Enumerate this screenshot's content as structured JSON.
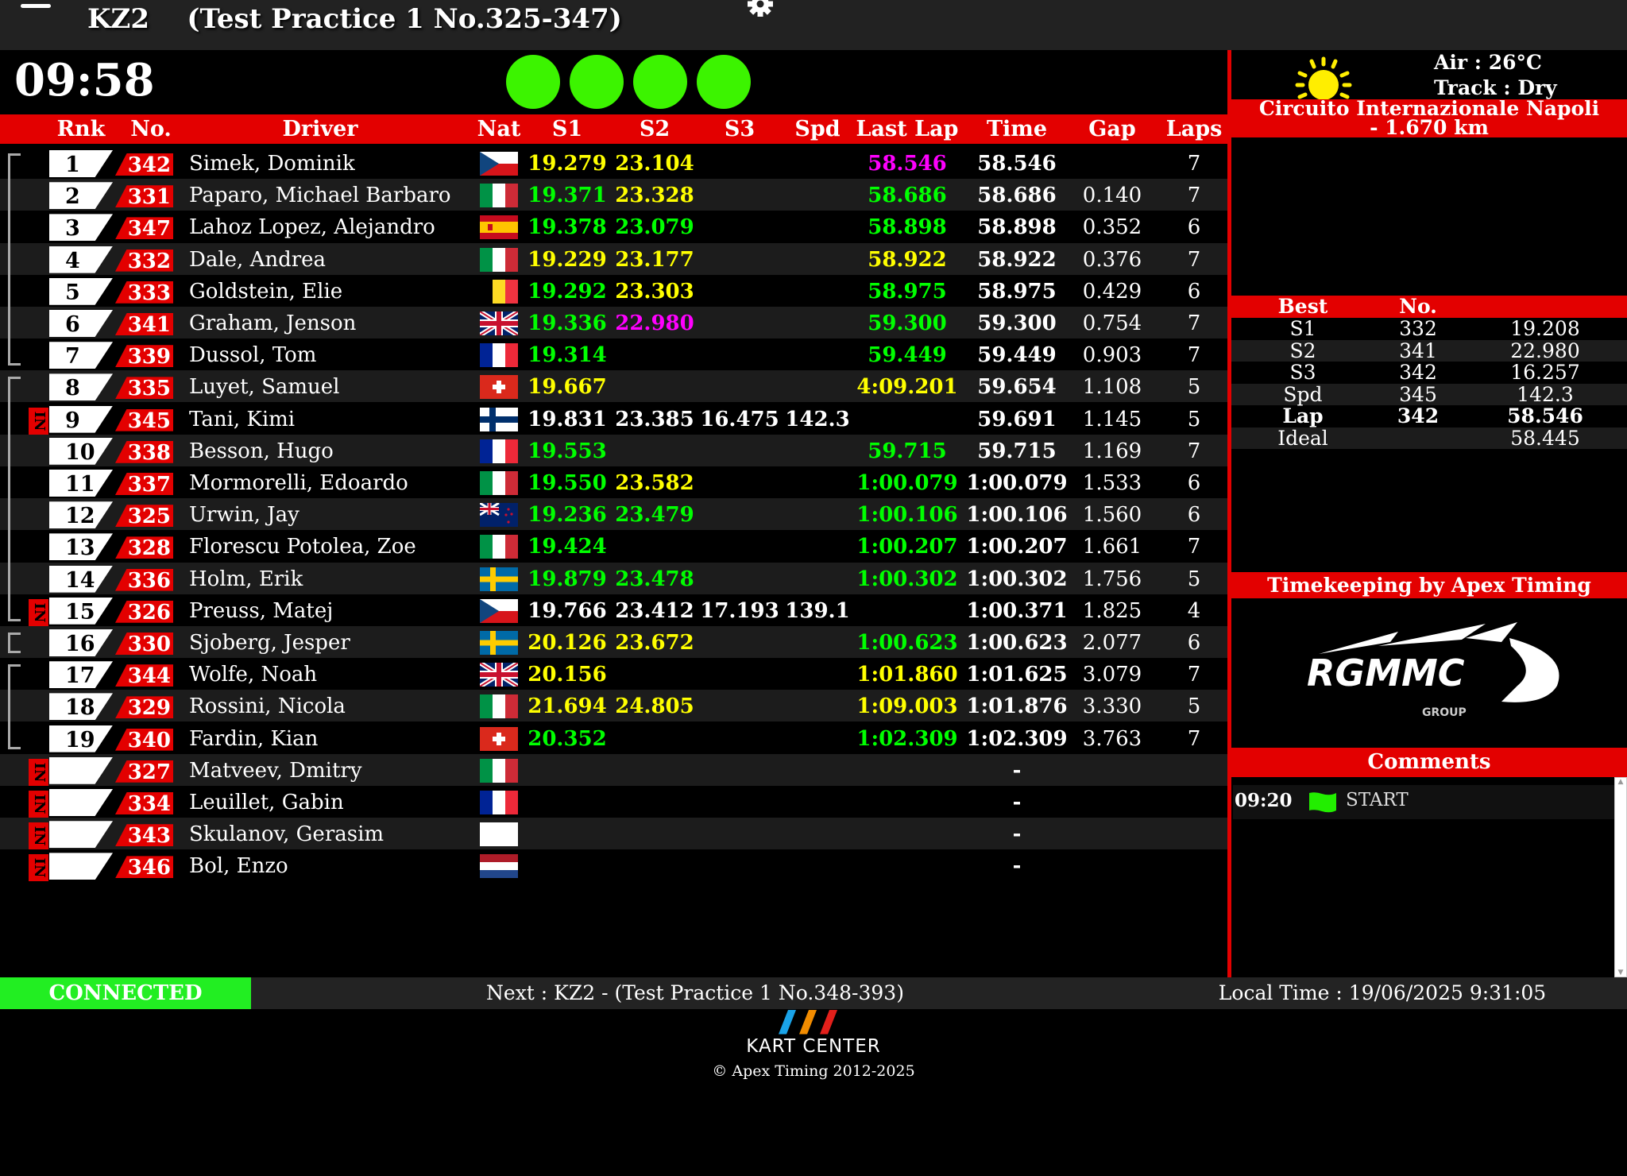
{
  "header": {
    "title": "KZ2    (Test Practice 1 No.325-347)",
    "menu_icon": "hamburger-icon",
    "settings_icon": "gear-icon"
  },
  "session": {
    "time_remaining": "09:58",
    "lights": [
      "green",
      "green",
      "green",
      "green"
    ],
    "light_color": "#3cf400"
  },
  "columns": {
    "rank": "Rnk",
    "no": "No.",
    "driver": "Driver",
    "nat": "Nat",
    "s1": "S1",
    "s2": "S2",
    "s3": "S3",
    "spd": "Spd",
    "last_lap": "Last Lap",
    "time": "Time",
    "gap": "Gap",
    "laps": "Laps"
  },
  "colors": {
    "personal_best": "#00ff00",
    "overall_best": "#ff00ff",
    "slower": "#ffff00",
    "accent": "#e30000"
  },
  "rows": [
    {
      "rank": "1",
      "no": "342",
      "driver": "Simek, Dominik",
      "nat": "CZ",
      "in": false,
      "group": 1,
      "s1": [
        "19.279",
        "y"
      ],
      "s2": [
        "23.104",
        "y"
      ],
      "s3": [
        "",
        ""
      ],
      "spd": [
        "",
        ""
      ],
      "last_lap": [
        "58.546",
        "m"
      ],
      "time": "58.546",
      "gap": "",
      "laps": "7"
    },
    {
      "rank": "2",
      "no": "331",
      "driver": "Paparo, Michael Barbaro",
      "nat": "IT",
      "in": false,
      "group": 1,
      "s1": [
        "19.371",
        "g"
      ],
      "s2": [
        "23.328",
        "y"
      ],
      "s3": [
        "",
        ""
      ],
      "spd": [
        "",
        ""
      ],
      "last_lap": [
        "58.686",
        "g"
      ],
      "time": "58.686",
      "gap": "0.140",
      "laps": "7"
    },
    {
      "rank": "3",
      "no": "347",
      "driver": "Lahoz Lopez, Alejandro",
      "nat": "ES",
      "in": false,
      "group": 1,
      "s1": [
        "19.378",
        "g"
      ],
      "s2": [
        "23.079",
        "g"
      ],
      "s3": [
        "",
        ""
      ],
      "spd": [
        "",
        ""
      ],
      "last_lap": [
        "58.898",
        "g"
      ],
      "time": "58.898",
      "gap": "0.352",
      "laps": "6"
    },
    {
      "rank": "4",
      "no": "332",
      "driver": "Dale, Andrea",
      "nat": "IT",
      "in": false,
      "group": 1,
      "s1": [
        "19.229",
        "y"
      ],
      "s2": [
        "23.177",
        "y"
      ],
      "s3": [
        "",
        ""
      ],
      "spd": [
        "",
        ""
      ],
      "last_lap": [
        "58.922",
        "y"
      ],
      "time": "58.922",
      "gap": "0.376",
      "laps": "7"
    },
    {
      "rank": "5",
      "no": "333",
      "driver": "Goldstein, Elie",
      "nat": "BE",
      "in": false,
      "group": 1,
      "s1": [
        "19.292",
        "g"
      ],
      "s2": [
        "23.303",
        "y"
      ],
      "s3": [
        "",
        ""
      ],
      "spd": [
        "",
        ""
      ],
      "last_lap": [
        "58.975",
        "g"
      ],
      "time": "58.975",
      "gap": "0.429",
      "laps": "6"
    },
    {
      "rank": "6",
      "no": "341",
      "driver": "Graham, Jenson",
      "nat": "GB",
      "in": false,
      "group": 1,
      "s1": [
        "19.336",
        "g"
      ],
      "s2": [
        "22.980",
        "m"
      ],
      "s3": [
        "",
        ""
      ],
      "spd": [
        "",
        ""
      ],
      "last_lap": [
        "59.300",
        "g"
      ],
      "time": "59.300",
      "gap": "0.754",
      "laps": "7"
    },
    {
      "rank": "7",
      "no": "339",
      "driver": "Dussol, Tom",
      "nat": "FR",
      "in": false,
      "group": 1,
      "s1": [
        "19.314",
        "g"
      ],
      "s2": [
        "",
        ""
      ],
      "s3": [
        "",
        ""
      ],
      "spd": [
        "",
        ""
      ],
      "last_lap": [
        "59.449",
        "g"
      ],
      "time": "59.449",
      "gap": "0.903",
      "laps": "7"
    },
    {
      "rank": "8",
      "no": "335",
      "driver": "Luyet, Samuel",
      "nat": "CH",
      "in": false,
      "group": 2,
      "s1": [
        "19.667",
        "y"
      ],
      "s2": [
        "",
        ""
      ],
      "s3": [
        "",
        ""
      ],
      "spd": [
        "",
        ""
      ],
      "last_lap": [
        "4:09.201",
        "y"
      ],
      "time": "59.654",
      "gap": "1.108",
      "laps": "5"
    },
    {
      "rank": "9",
      "no": "345",
      "driver": "Tani, Kimi",
      "nat": "FI",
      "in": true,
      "group": 2,
      "s1": [
        "19.831",
        "w"
      ],
      "s2": [
        "23.385",
        "w"
      ],
      "s3": [
        "16.475",
        "w"
      ],
      "spd": [
        "142.3",
        "w"
      ],
      "last_lap": [
        "",
        ""
      ],
      "time": "59.691",
      "gap": "1.145",
      "laps": "5"
    },
    {
      "rank": "10",
      "no": "338",
      "driver": "Besson, Hugo",
      "nat": "FR",
      "in": false,
      "group": 2,
      "s1": [
        "19.553",
        "g"
      ],
      "s2": [
        "",
        ""
      ],
      "s3": [
        "",
        ""
      ],
      "spd": [
        "",
        ""
      ],
      "last_lap": [
        "59.715",
        "g"
      ],
      "time": "59.715",
      "gap": "1.169",
      "laps": "7"
    },
    {
      "rank": "11",
      "no": "337",
      "driver": "Mormorelli, Edoardo",
      "nat": "IT",
      "in": false,
      "group": 2,
      "s1": [
        "19.550",
        "g"
      ],
      "s2": [
        "23.582",
        "y"
      ],
      "s3": [
        "",
        ""
      ],
      "spd": [
        "",
        ""
      ],
      "last_lap": [
        "1:00.079",
        "g"
      ],
      "time": "1:00.079",
      "gap": "1.533",
      "laps": "6"
    },
    {
      "rank": "12",
      "no": "325",
      "driver": "Urwin, Jay",
      "nat": "NZ",
      "in": false,
      "group": 2,
      "s1": [
        "19.236",
        "g"
      ],
      "s2": [
        "23.479",
        "g"
      ],
      "s3": [
        "",
        ""
      ],
      "spd": [
        "",
        ""
      ],
      "last_lap": [
        "1:00.106",
        "g"
      ],
      "time": "1:00.106",
      "gap": "1.560",
      "laps": "6"
    },
    {
      "rank": "13",
      "no": "328",
      "driver": "Florescu Potolea, Zoe",
      "nat": "IT",
      "in": false,
      "group": 2,
      "s1": [
        "19.424",
        "g"
      ],
      "s2": [
        "",
        ""
      ],
      "s3": [
        "",
        ""
      ],
      "spd": [
        "",
        ""
      ],
      "last_lap": [
        "1:00.207",
        "g"
      ],
      "time": "1:00.207",
      "gap": "1.661",
      "laps": "7"
    },
    {
      "rank": "14",
      "no": "336",
      "driver": "Holm, Erik",
      "nat": "SE",
      "in": false,
      "group": 2,
      "s1": [
        "19.879",
        "g"
      ],
      "s2": [
        "23.478",
        "g"
      ],
      "s3": [
        "",
        ""
      ],
      "spd": [
        "",
        ""
      ],
      "last_lap": [
        "1:00.302",
        "g"
      ],
      "time": "1:00.302",
      "gap": "1.756",
      "laps": "5"
    },
    {
      "rank": "15",
      "no": "326",
      "driver": "Preuss, Matej",
      "nat": "CZ",
      "in": true,
      "group": 2,
      "s1": [
        "19.766",
        "w"
      ],
      "s2": [
        "23.412",
        "w"
      ],
      "s3": [
        "17.193",
        "w"
      ],
      "spd": [
        "139.1",
        "w"
      ],
      "last_lap": [
        "",
        ""
      ],
      "time": "1:00.371",
      "gap": "1.825",
      "laps": "4"
    },
    {
      "rank": "16",
      "no": "330",
      "driver": "Sjoberg, Jesper",
      "nat": "SE",
      "in": false,
      "group": 3,
      "s1": [
        "20.126",
        "y"
      ],
      "s2": [
        "23.672",
        "y"
      ],
      "s3": [
        "",
        ""
      ],
      "spd": [
        "",
        ""
      ],
      "last_lap": [
        "1:00.623",
        "g"
      ],
      "time": "1:00.623",
      "gap": "2.077",
      "laps": "6"
    },
    {
      "rank": "17",
      "no": "344",
      "driver": "Wolfe, Noah",
      "nat": "GB",
      "in": false,
      "group": 4,
      "s1": [
        "20.156",
        "y"
      ],
      "s2": [
        "",
        ""
      ],
      "s3": [
        "",
        ""
      ],
      "spd": [
        "",
        ""
      ],
      "last_lap": [
        "1:01.860",
        "y"
      ],
      "time": "1:01.625",
      "gap": "3.079",
      "laps": "7"
    },
    {
      "rank": "18",
      "no": "329",
      "driver": "Rossini, Nicola",
      "nat": "IT",
      "in": false,
      "group": 4,
      "s1": [
        "21.694",
        "y"
      ],
      "s2": [
        "24.805",
        "y"
      ],
      "s3": [
        "",
        ""
      ],
      "spd": [
        "",
        ""
      ],
      "last_lap": [
        "1:09.003",
        "y"
      ],
      "time": "1:01.876",
      "gap": "3.330",
      "laps": "5"
    },
    {
      "rank": "19",
      "no": "340",
      "driver": "Fardin, Kian",
      "nat": "CH",
      "in": false,
      "group": 4,
      "s1": [
        "20.352",
        "g"
      ],
      "s2": [
        "",
        ""
      ],
      "s3": [
        "",
        ""
      ],
      "spd": [
        "",
        ""
      ],
      "last_lap": [
        "1:02.309",
        "g"
      ],
      "time": "1:02.309",
      "gap": "3.763",
      "laps": "7"
    },
    {
      "rank": "",
      "no": "327",
      "driver": "Matveev, Dmitry",
      "nat": "IT",
      "in": true,
      "group": 0,
      "s1": [
        "",
        ""
      ],
      "s2": [
        "",
        ""
      ],
      "s3": [
        "",
        ""
      ],
      "spd": [
        "",
        ""
      ],
      "last_lap": [
        "",
        ""
      ],
      "time": "-",
      "gap": "",
      "laps": ""
    },
    {
      "rank": "",
      "no": "334",
      "driver": "Leuillet, Gabin",
      "nat": "FR",
      "in": true,
      "group": 0,
      "s1": [
        "",
        ""
      ],
      "s2": [
        "",
        ""
      ],
      "s3": [
        "",
        ""
      ],
      "spd": [
        "",
        ""
      ],
      "last_lap": [
        "",
        ""
      ],
      "time": "-",
      "gap": "",
      "laps": ""
    },
    {
      "rank": "",
      "no": "343",
      "driver": "Skulanov, Gerasim",
      "nat": "",
      "in": true,
      "group": 0,
      "s1": [
        "",
        ""
      ],
      "s2": [
        "",
        ""
      ],
      "s3": [
        "",
        ""
      ],
      "spd": [
        "",
        ""
      ],
      "last_lap": [
        "",
        ""
      ],
      "time": "-",
      "gap": "",
      "laps": ""
    },
    {
      "rank": "",
      "no": "346",
      "driver": "Bol, Enzo",
      "nat": "NL",
      "in": true,
      "group": 0,
      "s1": [
        "",
        ""
      ],
      "s2": [
        "",
        ""
      ],
      "s3": [
        "",
        ""
      ],
      "spd": [
        "",
        ""
      ],
      "last_lap": [
        "",
        ""
      ],
      "time": "-",
      "gap": "",
      "laps": ""
    }
  ],
  "in_label": "IN",
  "weather": {
    "icon": "sun-icon",
    "air": "Air : 26°C",
    "track": "Track : Dry"
  },
  "circuit": "Circuito Internazionale Napoli - 1.670 km",
  "best": {
    "headers": [
      "Best",
      "No.",
      ""
    ],
    "rows": [
      {
        "label": "S1",
        "no": "332",
        "value": "19.208"
      },
      {
        "label": "S2",
        "no": "341",
        "value": "22.980"
      },
      {
        "label": "S3",
        "no": "342",
        "value": "16.257"
      },
      {
        "label": "Spd",
        "no": "345",
        "value": "142.3"
      },
      {
        "label": "Lap",
        "no": "342",
        "value": "58.546"
      },
      {
        "label": "Ideal",
        "no": "",
        "value": "58.445"
      }
    ]
  },
  "timekeeping": "Timekeeping by Apex Timing",
  "sponsor_logo": {
    "text": "RGMMC",
    "sub": "GROUP"
  },
  "comments": {
    "title": "Comments",
    "items": [
      {
        "time": "09:20",
        "flag": "green-flag-icon",
        "text": "START"
      }
    ]
  },
  "footer": {
    "status": "CONNECTED",
    "next": "Next : KZ2 - (Test Practice 1 No.348-393)",
    "local_time": "Local Time : 19/06/2025 9:31:05"
  },
  "brand": {
    "logo_text": "KART CENTER",
    "copyright": "© Apex Timing 2012-2025"
  }
}
